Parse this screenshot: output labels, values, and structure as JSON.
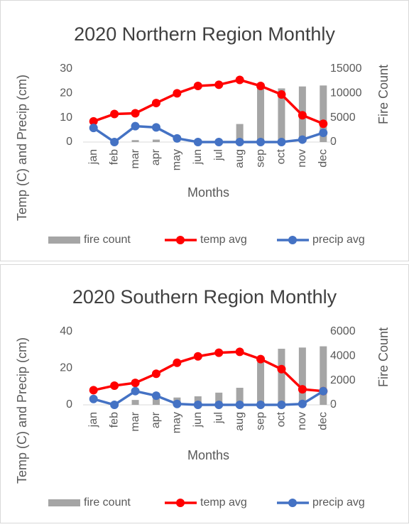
{
  "chart_data": [
    {
      "type": "combo",
      "title": "2020 Northern Region Monthly",
      "x_label": "Months",
      "y_label": "Temp (C) and Precip (cm)",
      "y2_label": "Fire Count",
      "categories": [
        "jan",
        "feb",
        "mar",
        "apr",
        "may",
        "jun",
        "jul",
        "aug",
        "sep",
        "oct",
        "nov",
        "dec"
      ],
      "ylim": [
        0,
        30
      ],
      "yticks": [
        0,
        10,
        20,
        30
      ],
      "y2lim": [
        0,
        15000
      ],
      "y2ticks": [
        0,
        5000,
        10000,
        15000
      ],
      "legend": "bottom",
      "series": [
        {
          "name": "fire count",
          "kind": "bar",
          "axis": "y2",
          "color": "#a5a5a5",
          "values": [
            0,
            0,
            400,
            500,
            0,
            0,
            0,
            3700,
            11500,
            11000,
            11400,
            11600
          ]
        },
        {
          "name": "temp avg",
          "kind": "line",
          "color": "#ff0000",
          "values": [
            8.5,
            11.5,
            11.8,
            16,
            20,
            23,
            23.5,
            25.5,
            23,
            19.5,
            11,
            7.5
          ]
        },
        {
          "name": "precip avg",
          "kind": "line",
          "color": "#4472c4",
          "values": [
            5.8,
            0,
            6.5,
            6,
            1.5,
            0,
            0,
            0,
            0,
            0,
            1,
            3.8
          ]
        }
      ]
    },
    {
      "type": "combo",
      "title": "2020 Southern Region Monthly",
      "x_label": "Months",
      "y_label": "Temp (C) and Precip (cm)",
      "y2_label": "Fire Count",
      "categories": [
        "jan",
        "feb",
        "mar",
        "apr",
        "may",
        "jun",
        "jul",
        "aug",
        "sep",
        "oct",
        "nov",
        "dec"
      ],
      "ylim": [
        0,
        40
      ],
      "yticks": [
        0,
        20,
        40
      ],
      "y2lim": [
        0,
        6000
      ],
      "y2ticks": [
        0,
        2000,
        4000,
        6000
      ],
      "legend": "bottom",
      "series": [
        {
          "name": "fire count",
          "kind": "bar",
          "axis": "y2",
          "color": "#a5a5a5",
          "values": [
            0,
            0,
            400,
            500,
            600,
            700,
            1000,
            1400,
            3500,
            4600,
            4700,
            4800
          ]
        },
        {
          "name": "temp avg",
          "kind": "line",
          "color": "#ff0000",
          "values": [
            8,
            10.5,
            12,
            17,
            23,
            26.5,
            28.5,
            29,
            25,
            19.5,
            8.5,
            7.5
          ]
        },
        {
          "name": "precip avg",
          "kind": "line",
          "color": "#4472c4",
          "values": [
            3.2,
            0,
            7.5,
            5,
            0.5,
            0,
            0,
            0,
            0,
            0,
            0.5,
            7.5
          ]
        }
      ]
    }
  ]
}
